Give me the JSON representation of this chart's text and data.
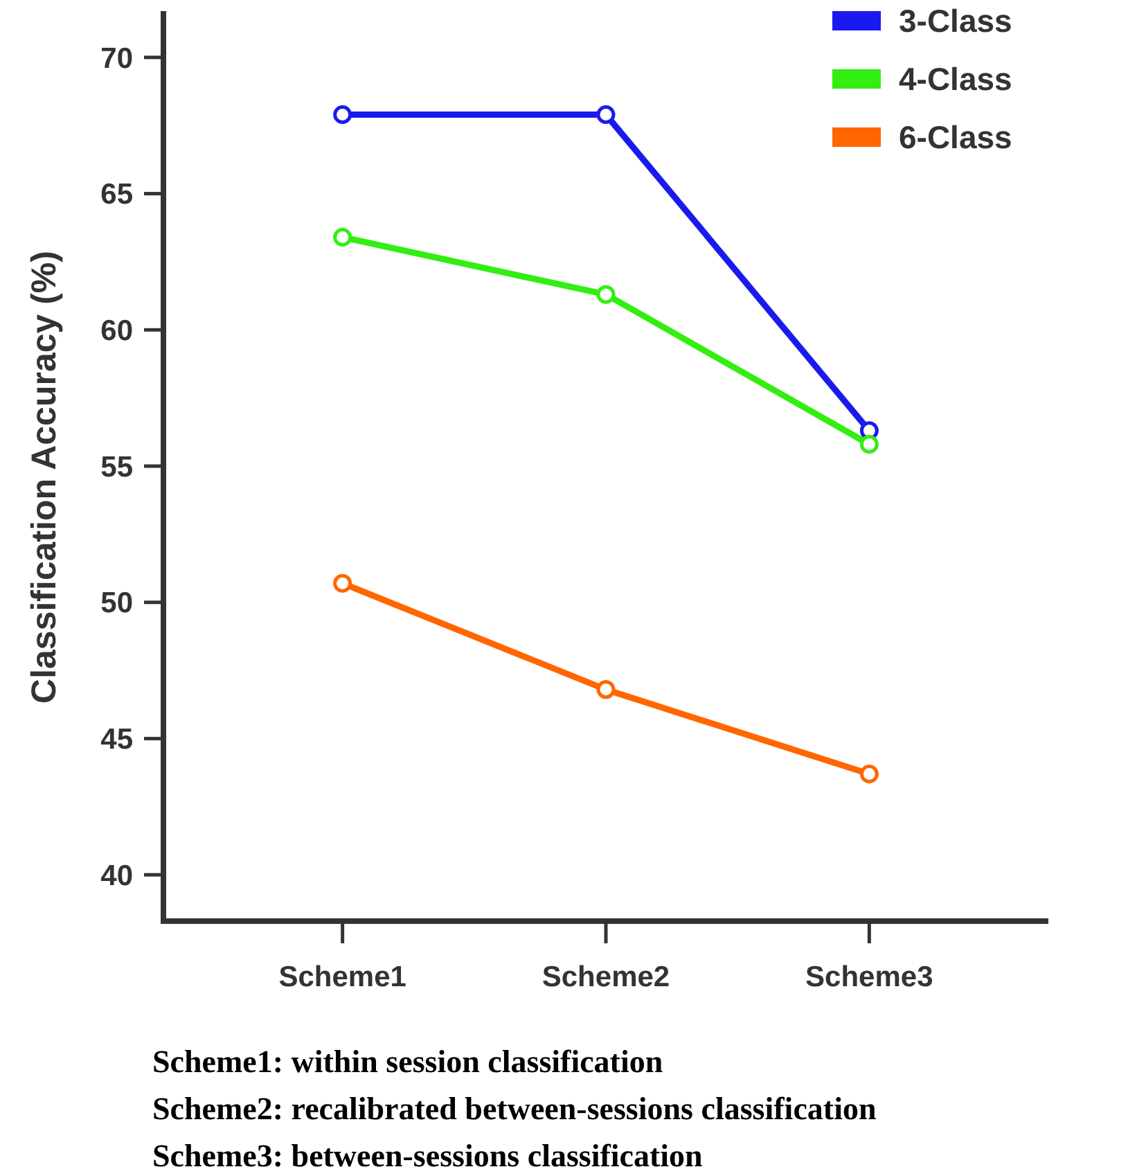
{
  "chart_data": {
    "type": "line",
    "ylabel": "Classification Accuracy (%)",
    "categories": [
      "Scheme1",
      "Scheme2",
      "Scheme3"
    ],
    "series": [
      {
        "name": "3-Class",
        "color": "#1a1aee",
        "values": [
          67.9,
          67.9,
          56.3
        ]
      },
      {
        "name": "4-Class",
        "color": "#33ee11",
        "values": [
          63.4,
          61.3,
          55.8
        ]
      },
      {
        "name": "6-Class",
        "color": "#ff6600",
        "values": [
          50.7,
          46.8,
          43.7
        ]
      }
    ],
    "ylim": [
      38.3,
      71.7
    ],
    "yticks": [
      40,
      45,
      50,
      55,
      60,
      65,
      70
    ],
    "grid": false,
    "legend": "top right",
    "marker": "circle",
    "line_style": "solid",
    "annotations": [
      "Scheme1: within session classification",
      "Scheme2: recalibrated between-sessions classification",
      "Scheme3: between-sessions classification"
    ]
  }
}
